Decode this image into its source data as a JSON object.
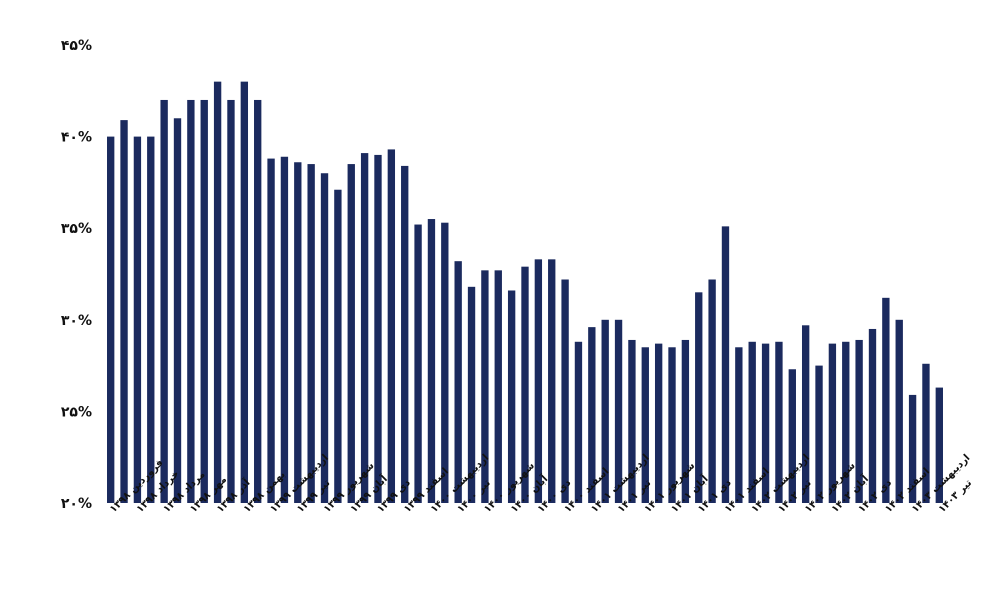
{
  "chart_data": {
    "type": "bar",
    "bar_color": "#1b2a5e",
    "ylim": [
      20,
      45
    ],
    "yticks": [
      "۲۰%",
      "۲۵%",
      "۳۰%",
      "۳۵%",
      "۴۰%",
      "۴۵%"
    ],
    "ytick_values": [
      20,
      25,
      30,
      35,
      40,
      45
    ],
    "grid": false,
    "categories": [
      "فروردین ۱۳۹۸",
      "",
      "خرداد ۱۳۹۸",
      "",
      "مرداد ۱۳۹۸",
      "",
      "مهر ۱۳۹۸",
      "",
      "آذر ۱۳۹۸",
      "",
      "بهمن ۱۳۹۸",
      "",
      "اردیبهشت ۱۳۹۹",
      "",
      "تیر ۱۳۹۹",
      "",
      "شهریور ۱۳۹۹",
      "",
      "آبان ۱۳۹۹",
      "",
      "دی ۱۳۹۹",
      "",
      "اسفند ۱۳۹۹",
      "",
      "اردیبهشت ۱۴۰۰",
      "",
      "تیر ۱۴۰۰",
      "",
      "شهریور ۱۴۰۰",
      "",
      "آبان ۱۴۰۰",
      "",
      "دی ۱۴۰۰",
      "",
      "اسفند ۱۴۰۰",
      "",
      "اردیبهشت ۱۴۰۱",
      "",
      "تیر ۱۴۰۱",
      "",
      "شهریور ۱۴۰۱",
      "",
      "آبان ۱۴۰۱",
      "",
      "دی ۱۴۰۱",
      "",
      "اسفند ۱۴۰۱",
      "",
      "اردیبهشت ۱۴۰۲",
      "",
      "تیر ۱۴۰۲",
      "",
      "شهریور ۱۴۰۲",
      "",
      "آبان ۱۴۰۲",
      "",
      "دی ۱۴۰۲",
      "",
      "اسفند ۱۴۰۲",
      "",
      "اردیبهشت ۱۴۰۳",
      "",
      "تیر ۱۴۰۳"
    ],
    "values": [
      40.0,
      40.9,
      40.0,
      40.0,
      42.0,
      41.0,
      42.0,
      42.0,
      43.0,
      42.0,
      43.0,
      42.0,
      38.8,
      38.9,
      38.6,
      38.5,
      38.0,
      37.1,
      38.5,
      39.1,
      39.0,
      39.3,
      38.4,
      35.2,
      35.5,
      35.3,
      33.2,
      31.8,
      32.7,
      32.7,
      31.6,
      32.9,
      33.3,
      33.3,
      32.2,
      28.8,
      29.6,
      30.0,
      30.0,
      28.9,
      28.5,
      28.7,
      28.5,
      28.9,
      31.5,
      32.2,
      35.1,
      28.5,
      28.8,
      28.7,
      28.8,
      27.3,
      29.7,
      27.5,
      28.7,
      28.8,
      28.9,
      29.5,
      31.2,
      30.0,
      25.9,
      27.6,
      26.3
    ]
  }
}
